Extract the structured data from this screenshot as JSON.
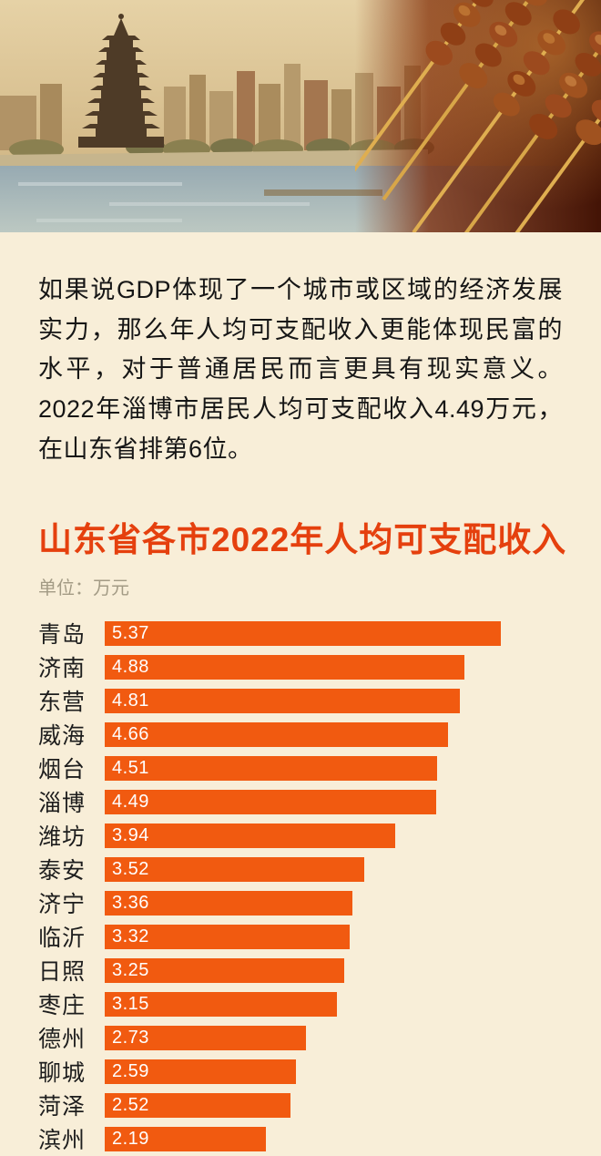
{
  "colors": {
    "background": "#f8eed8",
    "bar": "#f15a10",
    "title": "#e5400e",
    "text": "#161616",
    "unit_text": "#a39b85",
    "bar_value_text": "#ffffff"
  },
  "hero": {
    "description": "photo-collage-pagoda-cityscape-and-grilled-skewers"
  },
  "intro": {
    "text": "如果说GDP体现了一个城市或区域的经济发展实力，那么年人均可支配收入更能体现民富的水平，对于普通居民而言更具有现实意义。2022年淄博市居民人均可支配收入4.49万元，在山东省排第6位。"
  },
  "chart_data": {
    "type": "bar",
    "orientation": "horizontal",
    "title": "山东省各市2022年人均可支配收入",
    "unit_label": "单位：万元",
    "xlabel": "",
    "ylabel": "",
    "xlim": [
      0,
      5.6
    ],
    "grid": false,
    "legend": false,
    "categories": [
      "青岛",
      "济南",
      "东营",
      "威海",
      "烟台",
      "淄博",
      "潍坊",
      "泰安",
      "济宁",
      "临沂",
      "日照",
      "枣庄",
      "德州",
      "聊城",
      "菏泽",
      "滨州"
    ],
    "values": [
      5.37,
      4.88,
      4.81,
      4.66,
      4.51,
      4.49,
      3.94,
      3.52,
      3.36,
      3.32,
      3.25,
      3.15,
      2.73,
      2.59,
      2.52,
      2.19
    ],
    "value_labels": [
      "5.37",
      "4.88",
      "4.81",
      "4.66",
      "4.51",
      "4.49",
      "3.94",
      "3.52",
      "3.36",
      "3.32",
      "3.25",
      "3.15",
      "2.73",
      "2.59",
      "2.52",
      "2.19"
    ]
  }
}
